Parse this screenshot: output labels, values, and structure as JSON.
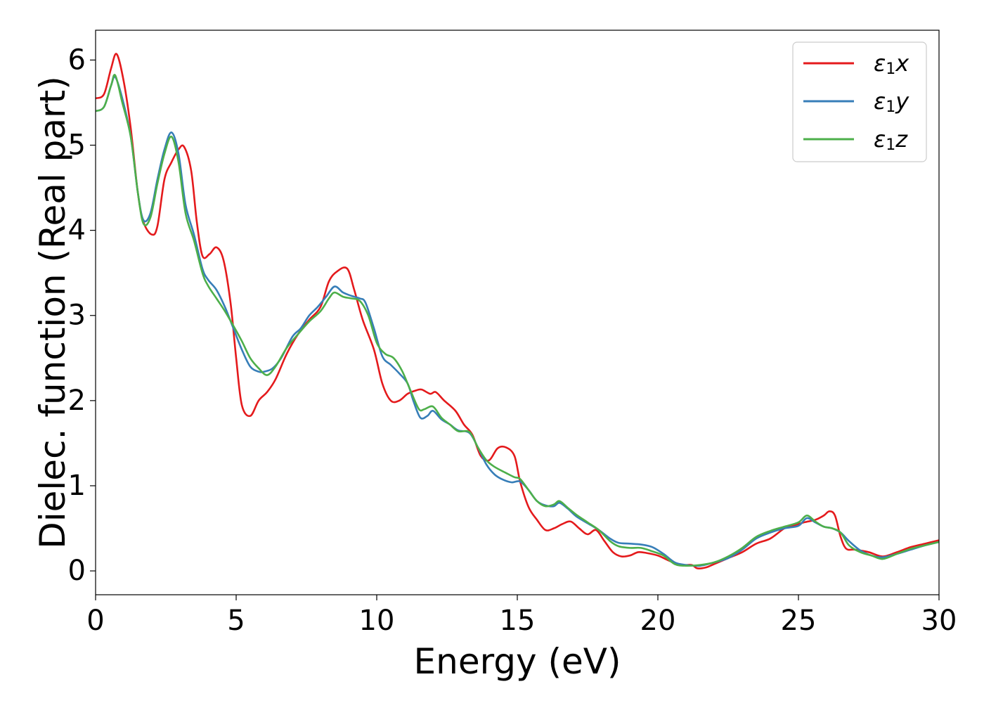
{
  "chart_data": {
    "type": "line",
    "title": "",
    "xlabel": "Energy (eV)",
    "ylabel": "Dielec. function (Real part)",
    "xlim": [
      0,
      30
    ],
    "ylim": [
      -0.28,
      6.35
    ],
    "xticks": [
      0,
      5,
      10,
      15,
      20,
      25,
      30
    ],
    "yticks": [
      0,
      1,
      2,
      3,
      4,
      5,
      6
    ],
    "grid": false,
    "legend_position": "top-right",
    "series": [
      {
        "name": "ε1x",
        "legend_base": "ε",
        "legend_sub": "1",
        "legend_suffix": "x",
        "color": "#e41a1c",
        "points": [
          [
            0,
            5.55
          ],
          [
            0.3,
            5.6
          ],
          [
            0.55,
            5.9
          ],
          [
            0.75,
            6.07
          ],
          [
            1.0,
            5.75
          ],
          [
            1.25,
            5.2
          ],
          [
            1.5,
            4.45
          ],
          [
            1.7,
            4.1
          ],
          [
            2.0,
            3.95
          ],
          [
            2.2,
            4.05
          ],
          [
            2.45,
            4.6
          ],
          [
            2.7,
            4.8
          ],
          [
            2.95,
            4.95
          ],
          [
            3.15,
            4.98
          ],
          [
            3.4,
            4.7
          ],
          [
            3.6,
            4.1
          ],
          [
            3.8,
            3.7
          ],
          [
            4.05,
            3.72
          ],
          [
            4.3,
            3.8
          ],
          [
            4.55,
            3.65
          ],
          [
            4.8,
            3.15
          ],
          [
            5.0,
            2.5
          ],
          [
            5.2,
            1.95
          ],
          [
            5.5,
            1.82
          ],
          [
            5.8,
            2.0
          ],
          [
            6.1,
            2.1
          ],
          [
            6.4,
            2.25
          ],
          [
            6.8,
            2.55
          ],
          [
            7.2,
            2.78
          ],
          [
            7.6,
            2.95
          ],
          [
            8.0,
            3.1
          ],
          [
            8.3,
            3.4
          ],
          [
            8.6,
            3.52
          ],
          [
            8.95,
            3.55
          ],
          [
            9.2,
            3.3
          ],
          [
            9.5,
            2.95
          ],
          [
            9.9,
            2.6
          ],
          [
            10.2,
            2.2
          ],
          [
            10.5,
            2.0
          ],
          [
            10.8,
            2.0
          ],
          [
            11.1,
            2.08
          ],
          [
            11.4,
            2.12
          ],
          [
            11.6,
            2.13
          ],
          [
            11.9,
            2.08
          ],
          [
            12.1,
            2.1
          ],
          [
            12.4,
            2.0
          ],
          [
            12.8,
            1.88
          ],
          [
            13.1,
            1.72
          ],
          [
            13.4,
            1.6
          ],
          [
            13.7,
            1.35
          ],
          [
            14.0,
            1.3
          ],
          [
            14.3,
            1.44
          ],
          [
            14.6,
            1.45
          ],
          [
            14.9,
            1.35
          ],
          [
            15.1,
            1.05
          ],
          [
            15.4,
            0.75
          ],
          [
            15.7,
            0.6
          ],
          [
            16.0,
            0.48
          ],
          [
            16.3,
            0.5
          ],
          [
            16.6,
            0.55
          ],
          [
            16.9,
            0.58
          ],
          [
            17.2,
            0.5
          ],
          [
            17.5,
            0.43
          ],
          [
            17.8,
            0.48
          ],
          [
            18.1,
            0.35
          ],
          [
            18.4,
            0.22
          ],
          [
            18.7,
            0.17
          ],
          [
            19.0,
            0.18
          ],
          [
            19.3,
            0.22
          ],
          [
            19.6,
            0.21
          ],
          [
            20.0,
            0.18
          ],
          [
            20.4,
            0.12
          ],
          [
            20.8,
            0.07
          ],
          [
            21.2,
            0.07
          ],
          [
            21.4,
            0.03
          ],
          [
            21.7,
            0.04
          ],
          [
            22.0,
            0.08
          ],
          [
            22.5,
            0.15
          ],
          [
            23.0,
            0.22
          ],
          [
            23.5,
            0.32
          ],
          [
            24.0,
            0.38
          ],
          [
            24.5,
            0.5
          ],
          [
            24.8,
            0.53
          ],
          [
            25.2,
            0.57
          ],
          [
            25.6,
            0.6
          ],
          [
            25.9,
            0.65
          ],
          [
            26.1,
            0.7
          ],
          [
            26.3,
            0.65
          ],
          [
            26.5,
            0.4
          ],
          [
            26.7,
            0.26
          ],
          [
            27.0,
            0.25
          ],
          [
            27.5,
            0.22
          ],
          [
            28.0,
            0.17
          ],
          [
            28.5,
            0.22
          ],
          [
            29.0,
            0.28
          ],
          [
            29.5,
            0.32
          ],
          [
            30.0,
            0.36
          ]
        ]
      },
      {
        "name": "ε1y",
        "legend_base": "ε",
        "legend_sub": "1",
        "legend_suffix": "y",
        "color": "#377eb8",
        "points": [
          [
            0,
            5.4
          ],
          [
            0.3,
            5.45
          ],
          [
            0.55,
            5.7
          ],
          [
            0.7,
            5.8
          ],
          [
            0.95,
            5.55
          ],
          [
            1.25,
            5.1
          ],
          [
            1.5,
            4.45
          ],
          [
            1.7,
            4.12
          ],
          [
            1.95,
            4.2
          ],
          [
            2.2,
            4.6
          ],
          [
            2.45,
            4.95
          ],
          [
            2.7,
            5.15
          ],
          [
            2.95,
            4.9
          ],
          [
            3.2,
            4.3
          ],
          [
            3.5,
            3.95
          ],
          [
            3.8,
            3.55
          ],
          [
            4.0,
            3.42
          ],
          [
            4.3,
            3.3
          ],
          [
            4.6,
            3.1
          ],
          [
            4.9,
            2.85
          ],
          [
            5.2,
            2.6
          ],
          [
            5.5,
            2.4
          ],
          [
            5.8,
            2.34
          ],
          [
            6.0,
            2.34
          ],
          [
            6.3,
            2.38
          ],
          [
            6.6,
            2.5
          ],
          [
            7.0,
            2.75
          ],
          [
            7.3,
            2.85
          ],
          [
            7.6,
            3.0
          ],
          [
            7.9,
            3.1
          ],
          [
            8.2,
            3.22
          ],
          [
            8.5,
            3.34
          ],
          [
            8.8,
            3.27
          ],
          [
            9.1,
            3.23
          ],
          [
            9.4,
            3.2
          ],
          [
            9.6,
            3.15
          ],
          [
            9.9,
            2.85
          ],
          [
            10.2,
            2.52
          ],
          [
            10.5,
            2.42
          ],
          [
            10.8,
            2.32
          ],
          [
            11.1,
            2.2
          ],
          [
            11.3,
            2.0
          ],
          [
            11.55,
            1.8
          ],
          [
            11.8,
            1.82
          ],
          [
            12.0,
            1.88
          ],
          [
            12.3,
            1.78
          ],
          [
            12.6,
            1.72
          ],
          [
            12.9,
            1.65
          ],
          [
            13.3,
            1.62
          ],
          [
            13.6,
            1.45
          ],
          [
            13.9,
            1.25
          ],
          [
            14.2,
            1.13
          ],
          [
            14.5,
            1.07
          ],
          [
            14.8,
            1.04
          ],
          [
            15.1,
            1.05
          ],
          [
            15.4,
            0.95
          ],
          [
            15.7,
            0.82
          ],
          [
            16.0,
            0.77
          ],
          [
            16.3,
            0.76
          ],
          [
            16.5,
            0.8
          ],
          [
            16.8,
            0.73
          ],
          [
            17.1,
            0.64
          ],
          [
            17.5,
            0.56
          ],
          [
            17.9,
            0.48
          ],
          [
            18.3,
            0.38
          ],
          [
            18.6,
            0.33
          ],
          [
            19.0,
            0.32
          ],
          [
            19.4,
            0.31
          ],
          [
            19.8,
            0.28
          ],
          [
            20.2,
            0.2
          ],
          [
            20.6,
            0.1
          ],
          [
            21.0,
            0.07
          ],
          [
            21.5,
            0.06
          ],
          [
            22.0,
            0.1
          ],
          [
            22.5,
            0.15
          ],
          [
            23.0,
            0.25
          ],
          [
            23.5,
            0.38
          ],
          [
            24.0,
            0.45
          ],
          [
            24.5,
            0.5
          ],
          [
            25.0,
            0.53
          ],
          [
            25.3,
            0.62
          ],
          [
            25.6,
            0.57
          ],
          [
            25.9,
            0.52
          ],
          [
            26.2,
            0.5
          ],
          [
            26.5,
            0.45
          ],
          [
            26.8,
            0.35
          ],
          [
            27.2,
            0.24
          ],
          [
            27.6,
            0.18
          ],
          [
            28.0,
            0.16
          ],
          [
            28.5,
            0.2
          ],
          [
            29.0,
            0.25
          ],
          [
            29.5,
            0.3
          ],
          [
            30.0,
            0.34
          ]
        ]
      },
      {
        "name": "ε1z",
        "legend_base": "ε",
        "legend_sub": "1",
        "legend_suffix": "z",
        "color": "#4daf4a",
        "points": [
          [
            0,
            5.4
          ],
          [
            0.3,
            5.45
          ],
          [
            0.55,
            5.7
          ],
          [
            0.7,
            5.82
          ],
          [
            0.95,
            5.5
          ],
          [
            1.25,
            5.1
          ],
          [
            1.5,
            4.45
          ],
          [
            1.7,
            4.08
          ],
          [
            1.95,
            4.15
          ],
          [
            2.2,
            4.55
          ],
          [
            2.45,
            4.9
          ],
          [
            2.7,
            5.1
          ],
          [
            2.95,
            4.8
          ],
          [
            3.2,
            4.2
          ],
          [
            3.5,
            3.88
          ],
          [
            3.8,
            3.5
          ],
          [
            4.0,
            3.35
          ],
          [
            4.3,
            3.2
          ],
          [
            4.6,
            3.05
          ],
          [
            4.9,
            2.88
          ],
          [
            5.2,
            2.7
          ],
          [
            5.5,
            2.5
          ],
          [
            5.8,
            2.38
          ],
          [
            6.1,
            2.3
          ],
          [
            6.4,
            2.4
          ],
          [
            6.8,
            2.62
          ],
          [
            7.2,
            2.78
          ],
          [
            7.6,
            2.93
          ],
          [
            8.0,
            3.05
          ],
          [
            8.3,
            3.2
          ],
          [
            8.5,
            3.27
          ],
          [
            8.8,
            3.22
          ],
          [
            9.1,
            3.2
          ],
          [
            9.4,
            3.17
          ],
          [
            9.7,
            3.0
          ],
          [
            10.0,
            2.68
          ],
          [
            10.3,
            2.55
          ],
          [
            10.6,
            2.5
          ],
          [
            10.9,
            2.35
          ],
          [
            11.2,
            2.12
          ],
          [
            11.5,
            1.9
          ],
          [
            11.7,
            1.9
          ],
          [
            12.0,
            1.93
          ],
          [
            12.3,
            1.8
          ],
          [
            12.6,
            1.72
          ],
          [
            12.9,
            1.64
          ],
          [
            13.3,
            1.63
          ],
          [
            13.6,
            1.45
          ],
          [
            13.9,
            1.3
          ],
          [
            14.2,
            1.22
          ],
          [
            14.6,
            1.15
          ],
          [
            14.9,
            1.1
          ],
          [
            15.1,
            1.08
          ],
          [
            15.4,
            0.95
          ],
          [
            15.7,
            0.82
          ],
          [
            16.0,
            0.76
          ],
          [
            16.3,
            0.78
          ],
          [
            16.5,
            0.82
          ],
          [
            16.8,
            0.74
          ],
          [
            17.1,
            0.66
          ],
          [
            17.5,
            0.57
          ],
          [
            17.9,
            0.48
          ],
          [
            18.3,
            0.35
          ],
          [
            18.6,
            0.29
          ],
          [
            19.0,
            0.27
          ],
          [
            19.4,
            0.27
          ],
          [
            19.8,
            0.23
          ],
          [
            20.2,
            0.18
          ],
          [
            20.6,
            0.08
          ],
          [
            21.0,
            0.06
          ],
          [
            21.5,
            0.07
          ],
          [
            22.0,
            0.1
          ],
          [
            22.5,
            0.17
          ],
          [
            23.0,
            0.27
          ],
          [
            23.5,
            0.4
          ],
          [
            24.0,
            0.47
          ],
          [
            24.5,
            0.52
          ],
          [
            25.0,
            0.57
          ],
          [
            25.3,
            0.65
          ],
          [
            25.6,
            0.58
          ],
          [
            25.9,
            0.52
          ],
          [
            26.2,
            0.5
          ],
          [
            26.5,
            0.45
          ],
          [
            26.8,
            0.3
          ],
          [
            27.2,
            0.22
          ],
          [
            27.6,
            0.18
          ],
          [
            28.0,
            0.14
          ],
          [
            28.5,
            0.2
          ],
          [
            29.0,
            0.26
          ],
          [
            29.5,
            0.3
          ],
          [
            30.0,
            0.34
          ]
        ]
      }
    ]
  }
}
